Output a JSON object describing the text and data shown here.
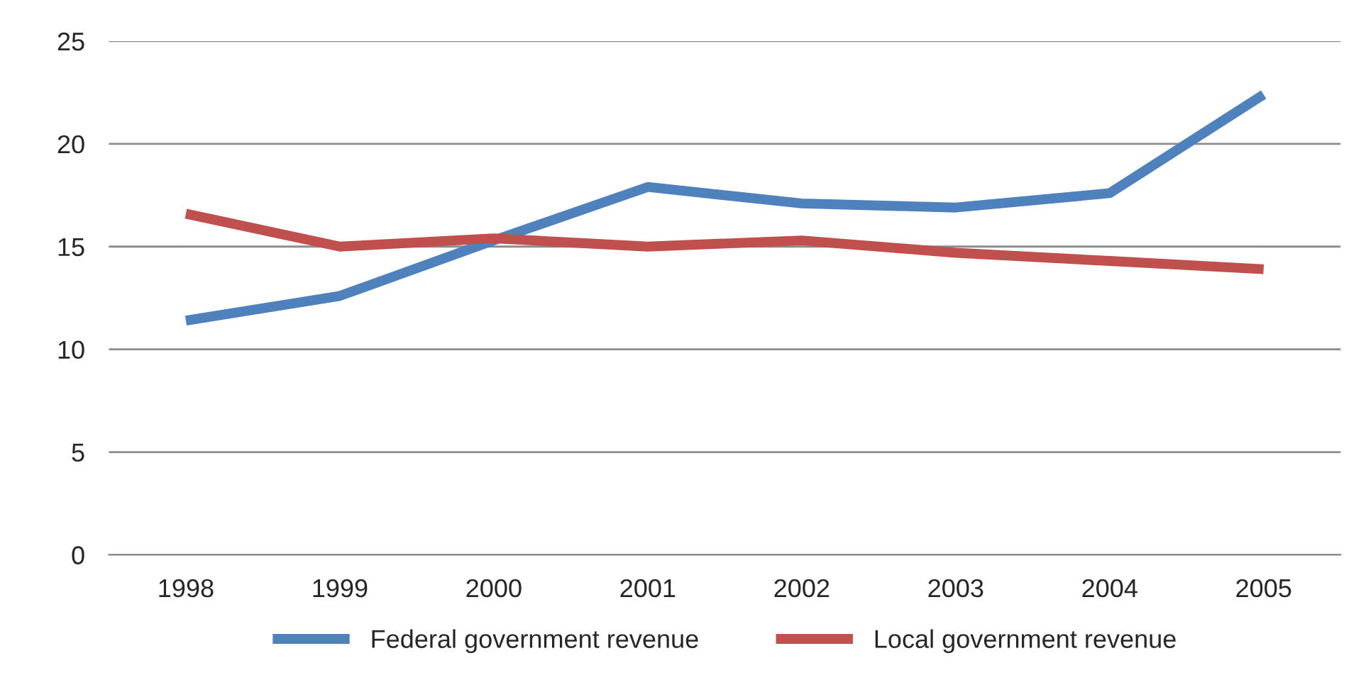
{
  "chart_data": {
    "type": "line",
    "categories": [
      "1998",
      "1999",
      "2000",
      "2001",
      "2002",
      "2003",
      "2004",
      "2005"
    ],
    "series": [
      {
        "name": "Federal government revenue",
        "color": "#4f81bd",
        "values": [
          11.4,
          12.6,
          15.3,
          17.9,
          17.1,
          16.9,
          17.6,
          22.4
        ]
      },
      {
        "name": "Local government revenue",
        "color": "#c0504d",
        "values": [
          16.6,
          15.0,
          15.4,
          15.0,
          15.3,
          14.7,
          14.3,
          13.9
        ]
      }
    ],
    "ylim": [
      0,
      25
    ],
    "yticks": [
      0,
      5,
      10,
      15,
      20,
      25
    ],
    "grid": "y",
    "legend": "bottom",
    "marker": "none",
    "line_style": "solid"
  }
}
